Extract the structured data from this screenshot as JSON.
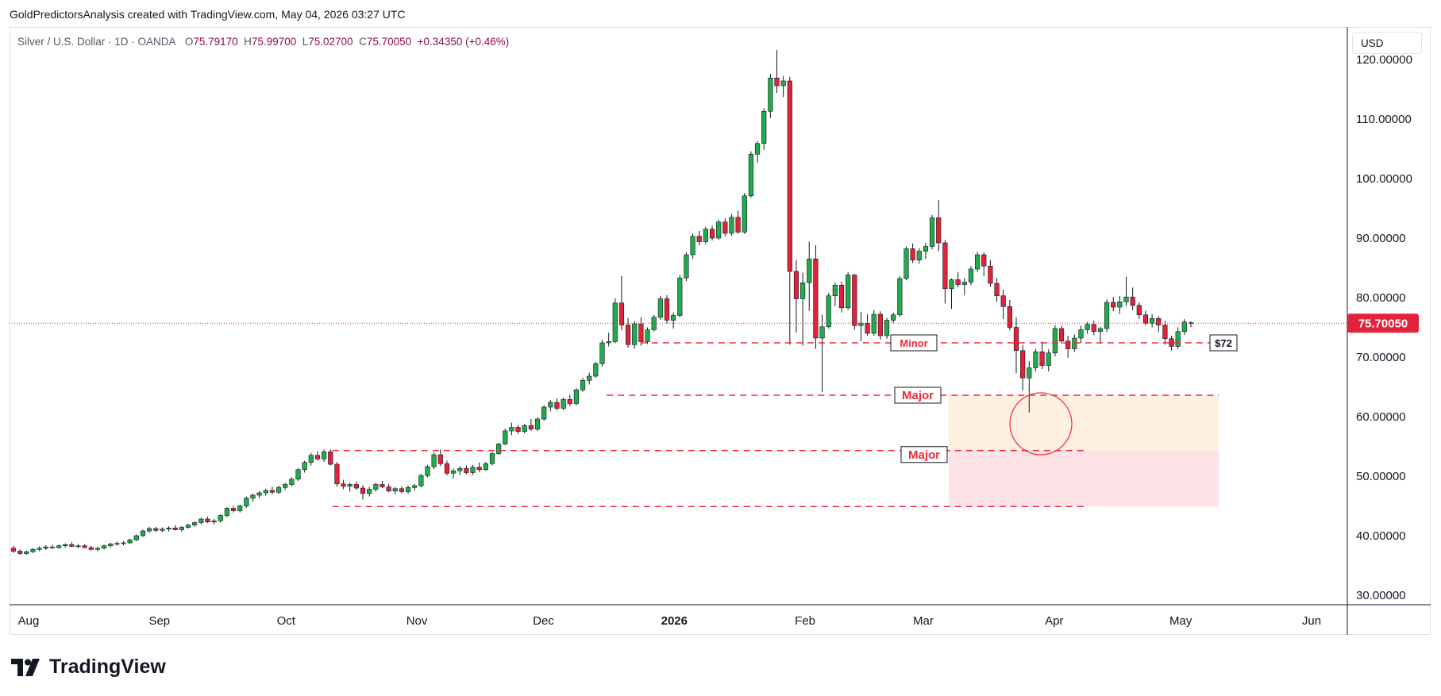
{
  "header": {
    "attribution": "GoldPredictorsAnalysis created with TradingView.com, May 04, 2026 03:27 UTC"
  },
  "legend": {
    "symbol": "Silver / U.S. Dollar · 1D · OANDA",
    "open_label": "O",
    "open": "75.79170",
    "high_label": "H",
    "high": "75.99700",
    "low_label": "L",
    "low": "75.02700",
    "close_label": "C",
    "close": "75.70050",
    "change": "+0.34350 (+0.46%)"
  },
  "currency": "USD",
  "brand": {
    "name": "TradingView"
  },
  "colors": {
    "up": "#22ab4a",
    "down": "#e2223b",
    "annotation": "#ef2b3b",
    "last_price_bg": "#e2223b"
  },
  "chart_data": {
    "type": "candlestick",
    "ylim": [
      30,
      120
    ],
    "y_ticks": [
      "120.00000",
      "110.00000",
      "100.00000",
      "90.00000",
      "80.00000",
      "70.00000",
      "60.00000",
      "50.00000",
      "40.00000",
      "30.00000"
    ],
    "y_tick_values": [
      120,
      110,
      100,
      90,
      80,
      70,
      60,
      50,
      40,
      30
    ],
    "x_ticks": [
      {
        "label": "Aug",
        "date": "2025-08-01",
        "bold": false
      },
      {
        "label": "Sep",
        "date": "2025-09-01",
        "bold": false
      },
      {
        "label": "Oct",
        "date": "2025-10-01",
        "bold": false
      },
      {
        "label": "Nov",
        "date": "2025-11-01",
        "bold": false
      },
      {
        "label": "Dec",
        "date": "2025-12-01",
        "bold": false
      },
      {
        "label": "2026",
        "date": "2026-01-01",
        "bold": true
      },
      {
        "label": "Feb",
        "date": "2026-02-01",
        "bold": false
      },
      {
        "label": "Mar",
        "date": "2026-03-01",
        "bold": false
      },
      {
        "label": "Apr",
        "date": "2026-04-01",
        "bold": false
      },
      {
        "label": "May",
        "date": "2026-05-01",
        "bold": false
      },
      {
        "label": "Jun",
        "date": "2026-06-01",
        "bold": false
      }
    ],
    "last_price": {
      "value": 75.7005,
      "label": "75.70050"
    },
    "candles_ohlc": [
      [
        37.9,
        38.3,
        37.1,
        37.4
      ],
      [
        37.4,
        37.7,
        36.8,
        37.0
      ],
      [
        37.0,
        37.5,
        36.8,
        37.3
      ],
      [
        37.3,
        37.9,
        37.1,
        37.7
      ],
      [
        37.7,
        38.2,
        37.4,
        37.9
      ],
      [
        37.9,
        38.4,
        37.6,
        38.1
      ],
      [
        38.1,
        38.5,
        37.8,
        38.0
      ],
      [
        38.0,
        38.5,
        37.8,
        38.3
      ],
      [
        38.3,
        38.7,
        38.0,
        38.5
      ],
      [
        38.5,
        38.9,
        38.1,
        38.2
      ],
      [
        38.2,
        38.6,
        37.9,
        38.3
      ],
      [
        38.3,
        38.6,
        37.9,
        38.0
      ],
      [
        38.0,
        38.3,
        37.5,
        37.7
      ],
      [
        37.7,
        38.1,
        37.4,
        37.9
      ],
      [
        37.9,
        38.5,
        37.7,
        38.3
      ],
      [
        38.3,
        38.8,
        38.0,
        38.6
      ],
      [
        38.6,
        39.0,
        38.3,
        38.7
      ],
      [
        38.7,
        39.1,
        38.4,
        38.8
      ],
      [
        38.8,
        39.5,
        38.6,
        39.3
      ],
      [
        39.3,
        40.2,
        39.1,
        40.0
      ],
      [
        40.0,
        41.0,
        39.8,
        40.8
      ],
      [
        40.8,
        41.5,
        40.5,
        41.2
      ],
      [
        41.2,
        41.5,
        40.6,
        40.9
      ],
      [
        40.9,
        41.4,
        40.6,
        41.1
      ],
      [
        41.1,
        41.6,
        40.7,
        41.3
      ],
      [
        41.3,
        41.8,
        40.9,
        41.0
      ],
      [
        41.0,
        41.6,
        40.7,
        41.4
      ],
      [
        41.4,
        42.0,
        41.2,
        41.8
      ],
      [
        41.8,
        42.4,
        41.5,
        42.2
      ],
      [
        42.2,
        43.0,
        41.9,
        42.8
      ],
      [
        42.8,
        43.2,
        42.1,
        42.3
      ],
      [
        42.3,
        42.8,
        41.9,
        42.5
      ],
      [
        42.5,
        43.6,
        42.2,
        43.4
      ],
      [
        43.4,
        44.8,
        43.1,
        44.6
      ],
      [
        44.6,
        45.0,
        43.9,
        44.2
      ],
      [
        44.2,
        45.2,
        43.9,
        45.0
      ],
      [
        45.0,
        46.6,
        44.7,
        46.3
      ],
      [
        46.3,
        47.1,
        45.7,
        46.8
      ],
      [
        46.8,
        47.5,
        46.3,
        47.2
      ],
      [
        47.2,
        47.9,
        46.7,
        47.6
      ],
      [
        47.6,
        48.2,
        46.9,
        47.3
      ],
      [
        47.3,
        48.4,
        47.0,
        48.1
      ],
      [
        48.1,
        48.9,
        47.7,
        48.6
      ],
      [
        48.6,
        49.8,
        48.3,
        49.5
      ],
      [
        49.5,
        51.4,
        49.2,
        51.1
      ],
      [
        51.1,
        52.6,
        50.6,
        52.3
      ],
      [
        52.3,
        53.9,
        51.8,
        53.5
      ],
      [
        53.5,
        54.2,
        52.6,
        52.9
      ],
      [
        52.9,
        54.5,
        52.4,
        54.1
      ],
      [
        54.1,
        54.5,
        51.8,
        52.0
      ],
      [
        52.0,
        52.4,
        48.2,
        48.7
      ],
      [
        48.7,
        49.4,
        47.8,
        48.3
      ],
      [
        48.3,
        48.9,
        47.4,
        48.6
      ],
      [
        48.6,
        49.1,
        47.7,
        48.0
      ],
      [
        48.0,
        48.5,
        46.1,
        47.1
      ],
      [
        47.1,
        48.2,
        46.6,
        47.8
      ],
      [
        47.8,
        48.9,
        47.4,
        48.6
      ],
      [
        48.6,
        49.2,
        48.0,
        48.2
      ],
      [
        48.2,
        48.7,
        47.3,
        47.5
      ],
      [
        47.5,
        48.2,
        47.0,
        47.9
      ],
      [
        47.9,
        48.3,
        47.1,
        47.4
      ],
      [
        47.4,
        48.4,
        47.1,
        48.1
      ],
      [
        48.1,
        48.7,
        47.6,
        48.4
      ],
      [
        48.4,
        50.4,
        48.1,
        50.1
      ],
      [
        50.1,
        51.9,
        49.8,
        51.6
      ],
      [
        51.6,
        54.0,
        51.2,
        53.6
      ],
      [
        53.6,
        54.5,
        51.7,
        52.1
      ],
      [
        52.1,
        52.6,
        50.1,
        50.5
      ],
      [
        50.5,
        51.3,
        49.6,
        50.9
      ],
      [
        50.9,
        51.7,
        50.2,
        51.3
      ],
      [
        51.3,
        51.8,
        50.3,
        50.6
      ],
      [
        50.6,
        51.9,
        50.2,
        51.5
      ],
      [
        51.5,
        52.3,
        50.7,
        51.1
      ],
      [
        51.1,
        52.4,
        50.9,
        52.1
      ],
      [
        52.1,
        54.1,
        51.8,
        53.8
      ],
      [
        53.8,
        55.6,
        53.6,
        55.4
      ],
      [
        55.4,
        58.0,
        55.2,
        57.6
      ],
      [
        57.6,
        59.0,
        56.9,
        58.2
      ],
      [
        58.2,
        58.6,
        57.1,
        57.5
      ],
      [
        57.5,
        58.8,
        57.2,
        58.5
      ],
      [
        58.5,
        59.6,
        57.6,
        57.9
      ],
      [
        57.9,
        59.9,
        57.6,
        59.6
      ],
      [
        59.6,
        61.9,
        59.3,
        61.6
      ],
      [
        61.6,
        62.8,
        60.9,
        62.4
      ],
      [
        62.4,
        63.1,
        61.0,
        61.4
      ],
      [
        61.4,
        63.2,
        61.1,
        62.9
      ],
      [
        62.9,
        63.7,
        61.8,
        62.2
      ],
      [
        62.2,
        64.8,
        61.9,
        64.5
      ],
      [
        64.5,
        66.5,
        64.2,
        66.1
      ],
      [
        66.1,
        67.4,
        65.4,
        66.8
      ],
      [
        66.8,
        69.2,
        66.5,
        68.9
      ],
      [
        68.9,
        72.9,
        68.4,
        72.4
      ],
      [
        72.4,
        74.1,
        71.8,
        72.6
      ],
      [
        72.6,
        79.9,
        72.3,
        79.1
      ],
      [
        79.1,
        83.6,
        74.5,
        75.4
      ],
      [
        75.4,
        76.6,
        71.6,
        72.1
      ],
      [
        72.1,
        76.1,
        71.4,
        75.6
      ],
      [
        75.6,
        76.7,
        71.9,
        72.6
      ],
      [
        72.6,
        75.0,
        72.2,
        74.6
      ],
      [
        74.6,
        77.1,
        74.3,
        76.7
      ],
      [
        76.7,
        80.3,
        76.3,
        79.8
      ],
      [
        79.8,
        80.4,
        75.6,
        76.2
      ],
      [
        76.2,
        77.5,
        74.8,
        77.0
      ],
      [
        77.0,
        83.8,
        76.7,
        83.3
      ],
      [
        83.3,
        87.6,
        82.8,
        87.2
      ],
      [
        87.2,
        90.8,
        86.5,
        90.3
      ],
      [
        90.3,
        91.2,
        88.8,
        89.4
      ],
      [
        89.4,
        91.9,
        89.0,
        91.5
      ],
      [
        91.5,
        92.1,
        89.6,
        90.0
      ],
      [
        90.0,
        93.1,
        89.7,
        92.7
      ],
      [
        92.7,
        93.3,
        90.3,
        90.8
      ],
      [
        90.8,
        94.1,
        90.4,
        93.5
      ],
      [
        93.5,
        94.6,
        90.7,
        91.0
      ],
      [
        91.0,
        97.6,
        90.7,
        97.1
      ],
      [
        97.1,
        104.6,
        96.8,
        104.1
      ],
      [
        104.1,
        106.3,
        102.7,
        105.9
      ],
      [
        105.9,
        111.8,
        104.8,
        111.3
      ],
      [
        111.3,
        117.6,
        110.2,
        116.9
      ],
      [
        116.9,
        121.6,
        114.4,
        115.6
      ],
      [
        115.6,
        117.2,
        113.7,
        116.4
      ],
      [
        116.4,
        117.1,
        72.1,
        84.4
      ],
      [
        84.4,
        86.3,
        74.1,
        79.8
      ],
      [
        79.8,
        84.2,
        71.9,
        82.5
      ],
      [
        82.5,
        89.4,
        77.8,
        86.5
      ],
      [
        86.5,
        88.8,
        71.4,
        73.2
      ],
      [
        73.2,
        77.1,
        64.1,
        75.1
      ],
      [
        75.1,
        80.8,
        74.8,
        80.3
      ],
      [
        80.3,
        82.5,
        78.6,
        82.1
      ],
      [
        82.1,
        82.7,
        77.5,
        78.3
      ],
      [
        78.3,
        84.3,
        77.9,
        83.8
      ],
      [
        83.8,
        84.0,
        74.6,
        75.3
      ],
      [
        75.3,
        77.6,
        72.7,
        75.7
      ],
      [
        75.7,
        77.2,
        73.6,
        74.0
      ],
      [
        74.0,
        77.9,
        73.6,
        77.2
      ],
      [
        77.2,
        77.7,
        72.9,
        73.6
      ],
      [
        73.6,
        76.6,
        73.1,
        76.2
      ],
      [
        76.2,
        77.5,
        75.7,
        77.1
      ],
      [
        77.1,
        83.6,
        76.8,
        83.2
      ],
      [
        83.2,
        88.6,
        82.9,
        88.2
      ],
      [
        88.2,
        89.1,
        85.8,
        86.3
      ],
      [
        86.3,
        88.3,
        85.7,
        87.8
      ],
      [
        87.8,
        89.2,
        86.5,
        88.6
      ],
      [
        88.6,
        93.9,
        88.1,
        93.4
      ],
      [
        93.4,
        96.4,
        87.8,
        89.2
      ],
      [
        89.2,
        89.7,
        79.0,
        81.5
      ],
      [
        81.5,
        83.2,
        78.1,
        83.0
      ],
      [
        83.0,
        84.3,
        81.7,
        82.2
      ],
      [
        82.2,
        83.3,
        80.4,
        82.6
      ],
      [
        82.6,
        85.3,
        82.1,
        84.8
      ],
      [
        84.8,
        87.7,
        84.3,
        87.2
      ],
      [
        87.2,
        87.6,
        83.6,
        85.3
      ],
      [
        85.3,
        86.3,
        81.8,
        82.4
      ],
      [
        82.4,
        83.3,
        79.3,
        80.3
      ],
      [
        80.3,
        81.4,
        76.4,
        78.5
      ],
      [
        78.5,
        79.6,
        74.5,
        75.0
      ],
      [
        75.0,
        76.7,
        67.3,
        71.1
      ],
      [
        71.1,
        72.1,
        64.4,
        66.5
      ],
      [
        66.5,
        69.3,
        60.7,
        68.2
      ],
      [
        68.2,
        71.4,
        67.6,
        70.9
      ],
      [
        70.9,
        72.6,
        68.0,
        68.6
      ],
      [
        68.6,
        71.3,
        67.6,
        70.7
      ],
      [
        70.7,
        75.4,
        70.1,
        74.8
      ],
      [
        74.8,
        75.3,
        72.2,
        72.7
      ],
      [
        72.7,
        73.6,
        69.9,
        71.4
      ],
      [
        71.4,
        73.8,
        70.9,
        73.2
      ],
      [
        73.2,
        75.3,
        72.4,
        74.6
      ],
      [
        74.6,
        75.9,
        73.9,
        75.5
      ],
      [
        75.5,
        76.1,
        73.7,
        74.3
      ],
      [
        74.3,
        75.1,
        72.3,
        74.8
      ],
      [
        74.8,
        79.7,
        74.2,
        79.2
      ],
      [
        79.2,
        80.1,
        77.7,
        78.4
      ],
      [
        78.4,
        80.3,
        77.3,
        79.3
      ],
      [
        79.3,
        83.5,
        78.6,
        80.1
      ],
      [
        80.1,
        81.7,
        77.9,
        78.7
      ],
      [
        78.7,
        79.2,
        76.4,
        77.1
      ],
      [
        77.1,
        77.8,
        75.3,
        75.7
      ],
      [
        75.7,
        77.2,
        75.0,
        76.5
      ],
      [
        76.5,
        76.9,
        74.2,
        75.4
      ],
      [
        75.4,
        76.1,
        72.1,
        73.1
      ],
      [
        73.1,
        73.6,
        71.1,
        71.8
      ],
      [
        71.8,
        75.0,
        71.4,
        74.3
      ],
      [
        74.3,
        76.4,
        73.7,
        75.9
      ],
      [
        75.79,
        76.0,
        75.03,
        75.7
      ]
    ],
    "levels": [
      {
        "value": 72.4,
        "start_date": "2025-12-24",
        "end_date": "2026-05-10",
        "label": "Minor"
      },
      {
        "value": 63.6,
        "start_date": "2025-12-16",
        "end_date": "2026-05-10",
        "label": "Major"
      },
      {
        "value": 54.3,
        "start_date": "2025-10-12",
        "end_date": "2026-04-08",
        "label": "Major"
      },
      {
        "value": 44.9,
        "start_date": "2025-10-12",
        "end_date": "2026-04-08",
        "label": ""
      }
    ],
    "level_price_label": "$72",
    "zones": [
      {
        "from": 54.3,
        "to": 63.6,
        "start_date": "2026-03-07",
        "end_date": "2026-05-10",
        "color": "#fdf0e0"
      },
      {
        "from": 44.9,
        "to": 54.3,
        "start_date": "2026-03-07",
        "end_date": "2026-05-10",
        "color": "#fde3e6"
      }
    ]
  }
}
